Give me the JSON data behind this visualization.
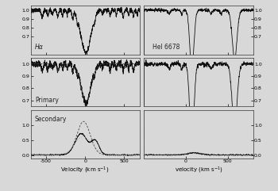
{
  "panel_labels": [
    [
      "Hα",
      "HeI 6678"
    ],
    [
      "Primary",
      ""
    ],
    [
      "Secondary",
      ""
    ]
  ],
  "left_xlim": [
    -700,
    700
  ],
  "right_xlim": [
    -500,
    800
  ],
  "row0_ylim": [
    0.5,
    1.05
  ],
  "row1_ylim": [
    0.65,
    1.05
  ],
  "row2_ylim": [
    -0.1,
    1.5
  ],
  "row0_yticks": [
    0.7,
    0.8,
    0.9,
    1.0
  ],
  "row1_yticks": [
    0.7,
    0.8,
    0.9,
    1.0
  ],
  "row2_yticks": [
    0.0,
    0.5,
    1.0
  ],
  "left_xticks": [
    -500,
    0,
    500
  ],
  "right_xticks": [
    0,
    500
  ],
  "xlabel_left": "Velocity (km s$^{-1}$)",
  "xlabel_right": "velocity (km s$^{-1}$)",
  "figsize": [
    3.5,
    2.41
  ],
  "dpi": 100,
  "line_color": "#111111",
  "dot_color": "#aaaaaa",
  "dash_color": "#444444",
  "divider_color": "#888888",
  "bg_color": "#d8d8d8"
}
